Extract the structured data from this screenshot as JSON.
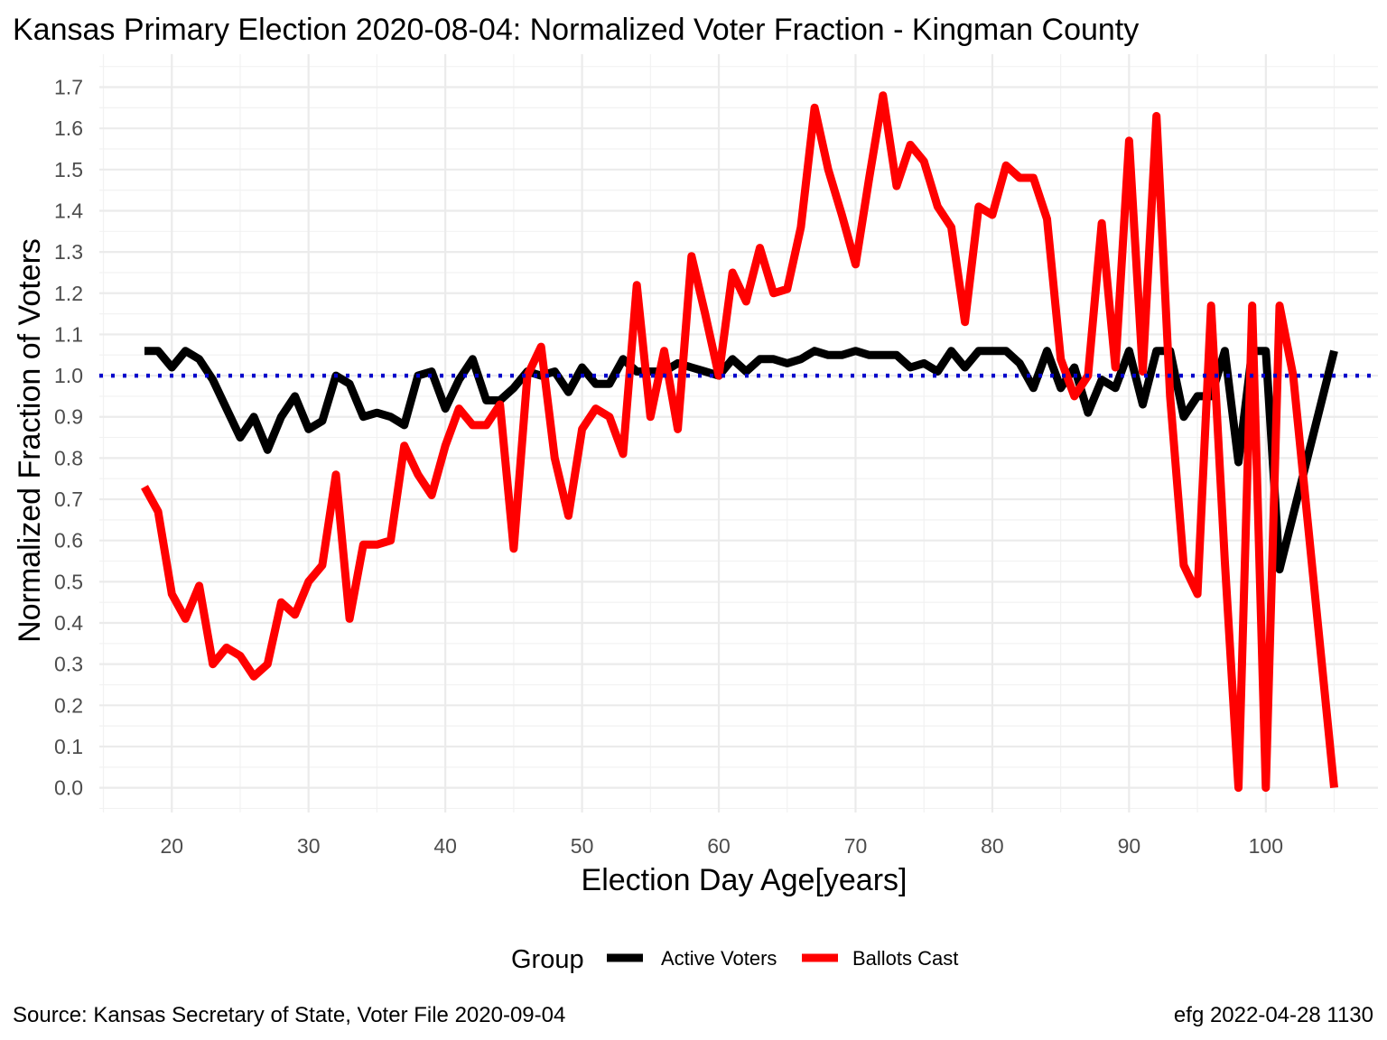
{
  "chart_data": {
    "type": "line",
    "title": "Kansas Primary Election 2020-08-04:  Normalized Voter Fraction - Kingman County",
    "xlabel": "Election Day Age[years]",
    "ylabel": "Normalized Fraction of Voters",
    "xlim": [
      14.7,
      108.2
    ],
    "ylim": [
      -0.06,
      1.78
    ],
    "x_ticks": [
      20,
      30,
      40,
      50,
      60,
      70,
      80,
      90,
      100
    ],
    "y_ticks": [
      0.0,
      0.1,
      0.2,
      0.3,
      0.4,
      0.5,
      0.6,
      0.7,
      0.8,
      0.9,
      1.0,
      1.1,
      1.2,
      1.3,
      1.4,
      1.5,
      1.6,
      1.7
    ],
    "y_tick_labels": [
      "0.0",
      "0.1",
      "0.2",
      "0.3",
      "0.4",
      "0.5",
      "0.6",
      "0.7",
      "0.8",
      "0.9",
      "1.0",
      "1.1",
      "1.2",
      "1.3",
      "1.4",
      "1.5",
      "1.6",
      "1.7"
    ],
    "grid": true,
    "reference_line": {
      "y": 1.0,
      "color": "#0000cc",
      "style": "dotted"
    },
    "legend": {
      "title": "Group",
      "position": "bottom"
    },
    "series": [
      {
        "name": "Active Voters",
        "color": "#000000",
        "points": [
          [
            18,
            1.06
          ],
          [
            19,
            1.06
          ],
          [
            20,
            1.02
          ],
          [
            21,
            1.06
          ],
          [
            22,
            1.04
          ],
          [
            23,
            0.99
          ],
          [
            24,
            0.92
          ],
          [
            25,
            0.85
          ],
          [
            26,
            0.9
          ],
          [
            27,
            0.82
          ],
          [
            28,
            0.9
          ],
          [
            29,
            0.95
          ],
          [
            30,
            0.87
          ],
          [
            31,
            0.89
          ],
          [
            32,
            1.0
          ],
          [
            33,
            0.98
          ],
          [
            34,
            0.9
          ],
          [
            35,
            0.91
          ],
          [
            36,
            0.9
          ],
          [
            37,
            0.88
          ],
          [
            38,
            1.0
          ],
          [
            39,
            1.01
          ],
          [
            40,
            0.92
          ],
          [
            41,
            0.99
          ],
          [
            42,
            1.04
          ],
          [
            43,
            0.94
          ],
          [
            44,
            0.94
          ],
          [
            45,
            0.97
          ],
          [
            46,
            1.01
          ],
          [
            47,
            1.0
          ],
          [
            48,
            1.01
          ],
          [
            49,
            0.96
          ],
          [
            50,
            1.02
          ],
          [
            51,
            0.98
          ],
          [
            52,
            0.98
          ],
          [
            53,
            1.04
          ],
          [
            54,
            1.01
          ],
          [
            55,
            1.01
          ],
          [
            56,
            1.01
          ],
          [
            57,
            1.03
          ],
          [
            58,
            1.02
          ],
          [
            59,
            1.01
          ],
          [
            60,
            1.0
          ],
          [
            61,
            1.04
          ],
          [
            62,
            1.01
          ],
          [
            63,
            1.04
          ],
          [
            64,
            1.04
          ],
          [
            65,
            1.03
          ],
          [
            66,
            1.04
          ],
          [
            67,
            1.06
          ],
          [
            68,
            1.05
          ],
          [
            69,
            1.05
          ],
          [
            70,
            1.06
          ],
          [
            71,
            1.05
          ],
          [
            72,
            1.05
          ],
          [
            73,
            1.05
          ],
          [
            74,
            1.02
          ],
          [
            75,
            1.03
          ],
          [
            76,
            1.01
          ],
          [
            77,
            1.06
          ],
          [
            78,
            1.02
          ],
          [
            79,
            1.06
          ],
          [
            80,
            1.06
          ],
          [
            81,
            1.06
          ],
          [
            82,
            1.03
          ],
          [
            83,
            0.97
          ],
          [
            84,
            1.06
          ],
          [
            85,
            0.97
          ],
          [
            86,
            1.02
          ],
          [
            87,
            0.91
          ],
          [
            88,
            0.99
          ],
          [
            89,
            0.97
          ],
          [
            90,
            1.06
          ],
          [
            91,
            0.93
          ],
          [
            92,
            1.06
          ],
          [
            93,
            1.06
          ],
          [
            94,
            0.9
          ],
          [
            95,
            0.95
          ],
          [
            96,
            0.95
          ],
          [
            97,
            1.06
          ],
          [
            98,
            0.79
          ],
          [
            99,
            1.06
          ],
          [
            100,
            1.06
          ],
          [
            101,
            0.53
          ],
          [
            105,
            1.06
          ]
        ]
      },
      {
        "name": "Ballots Cast",
        "color": "#ff0000",
        "points": [
          [
            18,
            0.73
          ],
          [
            19,
            0.67
          ],
          [
            20,
            0.47
          ],
          [
            21,
            0.41
          ],
          [
            22,
            0.49
          ],
          [
            23,
            0.3
          ],
          [
            24,
            0.34
          ],
          [
            25,
            0.32
          ],
          [
            26,
            0.27
          ],
          [
            27,
            0.3
          ],
          [
            28,
            0.45
          ],
          [
            29,
            0.42
          ],
          [
            30,
            0.5
          ],
          [
            31,
            0.54
          ],
          [
            32,
            0.76
          ],
          [
            33,
            0.41
          ],
          [
            34,
            0.59
          ],
          [
            35,
            0.59
          ],
          [
            36,
            0.6
          ],
          [
            37,
            0.83
          ],
          [
            38,
            0.76
          ],
          [
            39,
            0.71
          ],
          [
            40,
            0.83
          ],
          [
            41,
            0.92
          ],
          [
            42,
            0.88
          ],
          [
            43,
            0.88
          ],
          [
            44,
            0.93
          ],
          [
            45,
            0.58
          ],
          [
            46,
            1.0
          ],
          [
            47,
            1.07
          ],
          [
            48,
            0.8
          ],
          [
            49,
            0.66
          ],
          [
            50,
            0.87
          ],
          [
            51,
            0.92
          ],
          [
            52,
            0.9
          ],
          [
            53,
            0.81
          ],
          [
            54,
            1.22
          ],
          [
            55,
            0.9
          ],
          [
            56,
            1.06
          ],
          [
            57,
            0.87
          ],
          [
            58,
            1.29
          ],
          [
            59,
            1.15
          ],
          [
            60,
            1.0
          ],
          [
            61,
            1.25
          ],
          [
            62,
            1.18
          ],
          [
            63,
            1.31
          ],
          [
            64,
            1.2
          ],
          [
            65,
            1.21
          ],
          [
            66,
            1.36
          ],
          [
            67,
            1.65
          ],
          [
            68,
            1.5
          ],
          [
            69,
            1.39
          ],
          [
            70,
            1.27
          ],
          [
            71,
            1.48
          ],
          [
            72,
            1.68
          ],
          [
            73,
            1.46
          ],
          [
            74,
            1.56
          ],
          [
            75,
            1.52
          ],
          [
            76,
            1.41
          ],
          [
            77,
            1.36
          ],
          [
            78,
            1.13
          ],
          [
            79,
            1.41
          ],
          [
            80,
            1.39
          ],
          [
            81,
            1.51
          ],
          [
            82,
            1.48
          ],
          [
            83,
            1.48
          ],
          [
            84,
            1.38
          ],
          [
            85,
            1.04
          ],
          [
            86,
            0.95
          ],
          [
            87,
            1.0
          ],
          [
            88,
            1.37
          ],
          [
            89,
            1.02
          ],
          [
            90,
            1.57
          ],
          [
            91,
            1.01
          ],
          [
            92,
            1.63
          ],
          [
            93,
            0.95
          ],
          [
            94,
            0.54
          ],
          [
            95,
            0.47
          ],
          [
            96,
            1.17
          ],
          [
            97,
            0.55
          ],
          [
            98,
            0.0
          ],
          [
            99,
            1.17
          ],
          [
            100,
            0.0
          ],
          [
            101,
            1.17
          ],
          [
            102,
            1.0
          ],
          [
            105,
            0.0
          ]
        ]
      }
    ]
  },
  "caption_left": "Source:  Kansas Secretary of State, Voter File  2020-09-04",
  "caption_right": "efg 2022-04-28 1130"
}
